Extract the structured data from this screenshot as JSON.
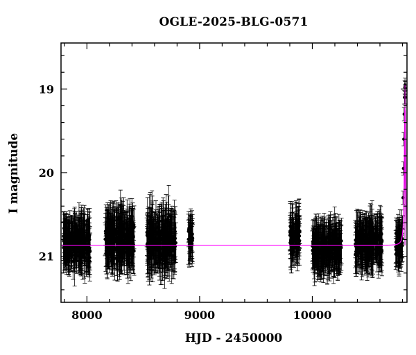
{
  "chart_data": {
    "type": "scatter",
    "title": "OGLE-2025-BLG-0571",
    "xlabel": "HJD - 2450000",
    "ylabel": "I magnitude",
    "xlim": [
      7770,
      10840
    ],
    "ylim": [
      21.55,
      18.45
    ],
    "y_inverted": true,
    "x_ticks": [
      8000,
      9000,
      10000
    ],
    "y_ticks": [
      19,
      20,
      21
    ],
    "grid": false,
    "colors": {
      "data": "#000000",
      "model": "#ff00ff",
      "model_peak": "#c000c0"
    },
    "baseline_magnitude": 20.87,
    "observing_seasons": [
      {
        "x_start": 7790,
        "x_end": 8030,
        "mag_median": 20.85,
        "mag_spread": 0.32,
        "err": 0.22
      },
      {
        "x_start": 8160,
        "x_end": 8420,
        "mag_median": 20.78,
        "mag_spread": 0.35,
        "err": 0.25
      },
      {
        "x_start": 8530,
        "x_end": 8790,
        "mag_median": 20.82,
        "mag_spread": 0.38,
        "err": 0.25
      },
      {
        "x_start": 8900,
        "x_end": 8940,
        "mag_median": 20.8,
        "mag_spread": 0.2,
        "err": 0.2
      },
      {
        "x_start": 9800,
        "x_end": 9890,
        "mag_median": 20.75,
        "mag_spread": 0.28,
        "err": 0.22
      },
      {
        "x_start": 10000,
        "x_end": 10260,
        "mag_median": 20.9,
        "mag_spread": 0.26,
        "err": 0.22
      },
      {
        "x_start": 10380,
        "x_end": 10620,
        "mag_median": 20.85,
        "mag_spread": 0.28,
        "err": 0.22
      },
      {
        "x_start": 10740,
        "x_end": 10800,
        "mag_median": 20.85,
        "mag_spread": 0.25,
        "err": 0.2
      }
    ],
    "event": {
      "x_peak": 10822,
      "peak_magnitude": 18.95,
      "x_rise_start": 10790,
      "points": [
        {
          "x": 10795,
          "y": 20.75
        },
        {
          "x": 10800,
          "y": 20.6
        },
        {
          "x": 10804,
          "y": 20.3
        },
        {
          "x": 10808,
          "y": 19.95
        },
        {
          "x": 10811,
          "y": 19.6
        },
        {
          "x": 10814,
          "y": 19.3
        },
        {
          "x": 10817,
          "y": 19.1
        },
        {
          "x": 10820,
          "y": 18.98
        },
        {
          "x": 10822,
          "y": 18.95
        },
        {
          "x": 10824,
          "y": 18.99
        },
        {
          "x": 10826,
          "y": 19.1
        }
      ]
    }
  }
}
